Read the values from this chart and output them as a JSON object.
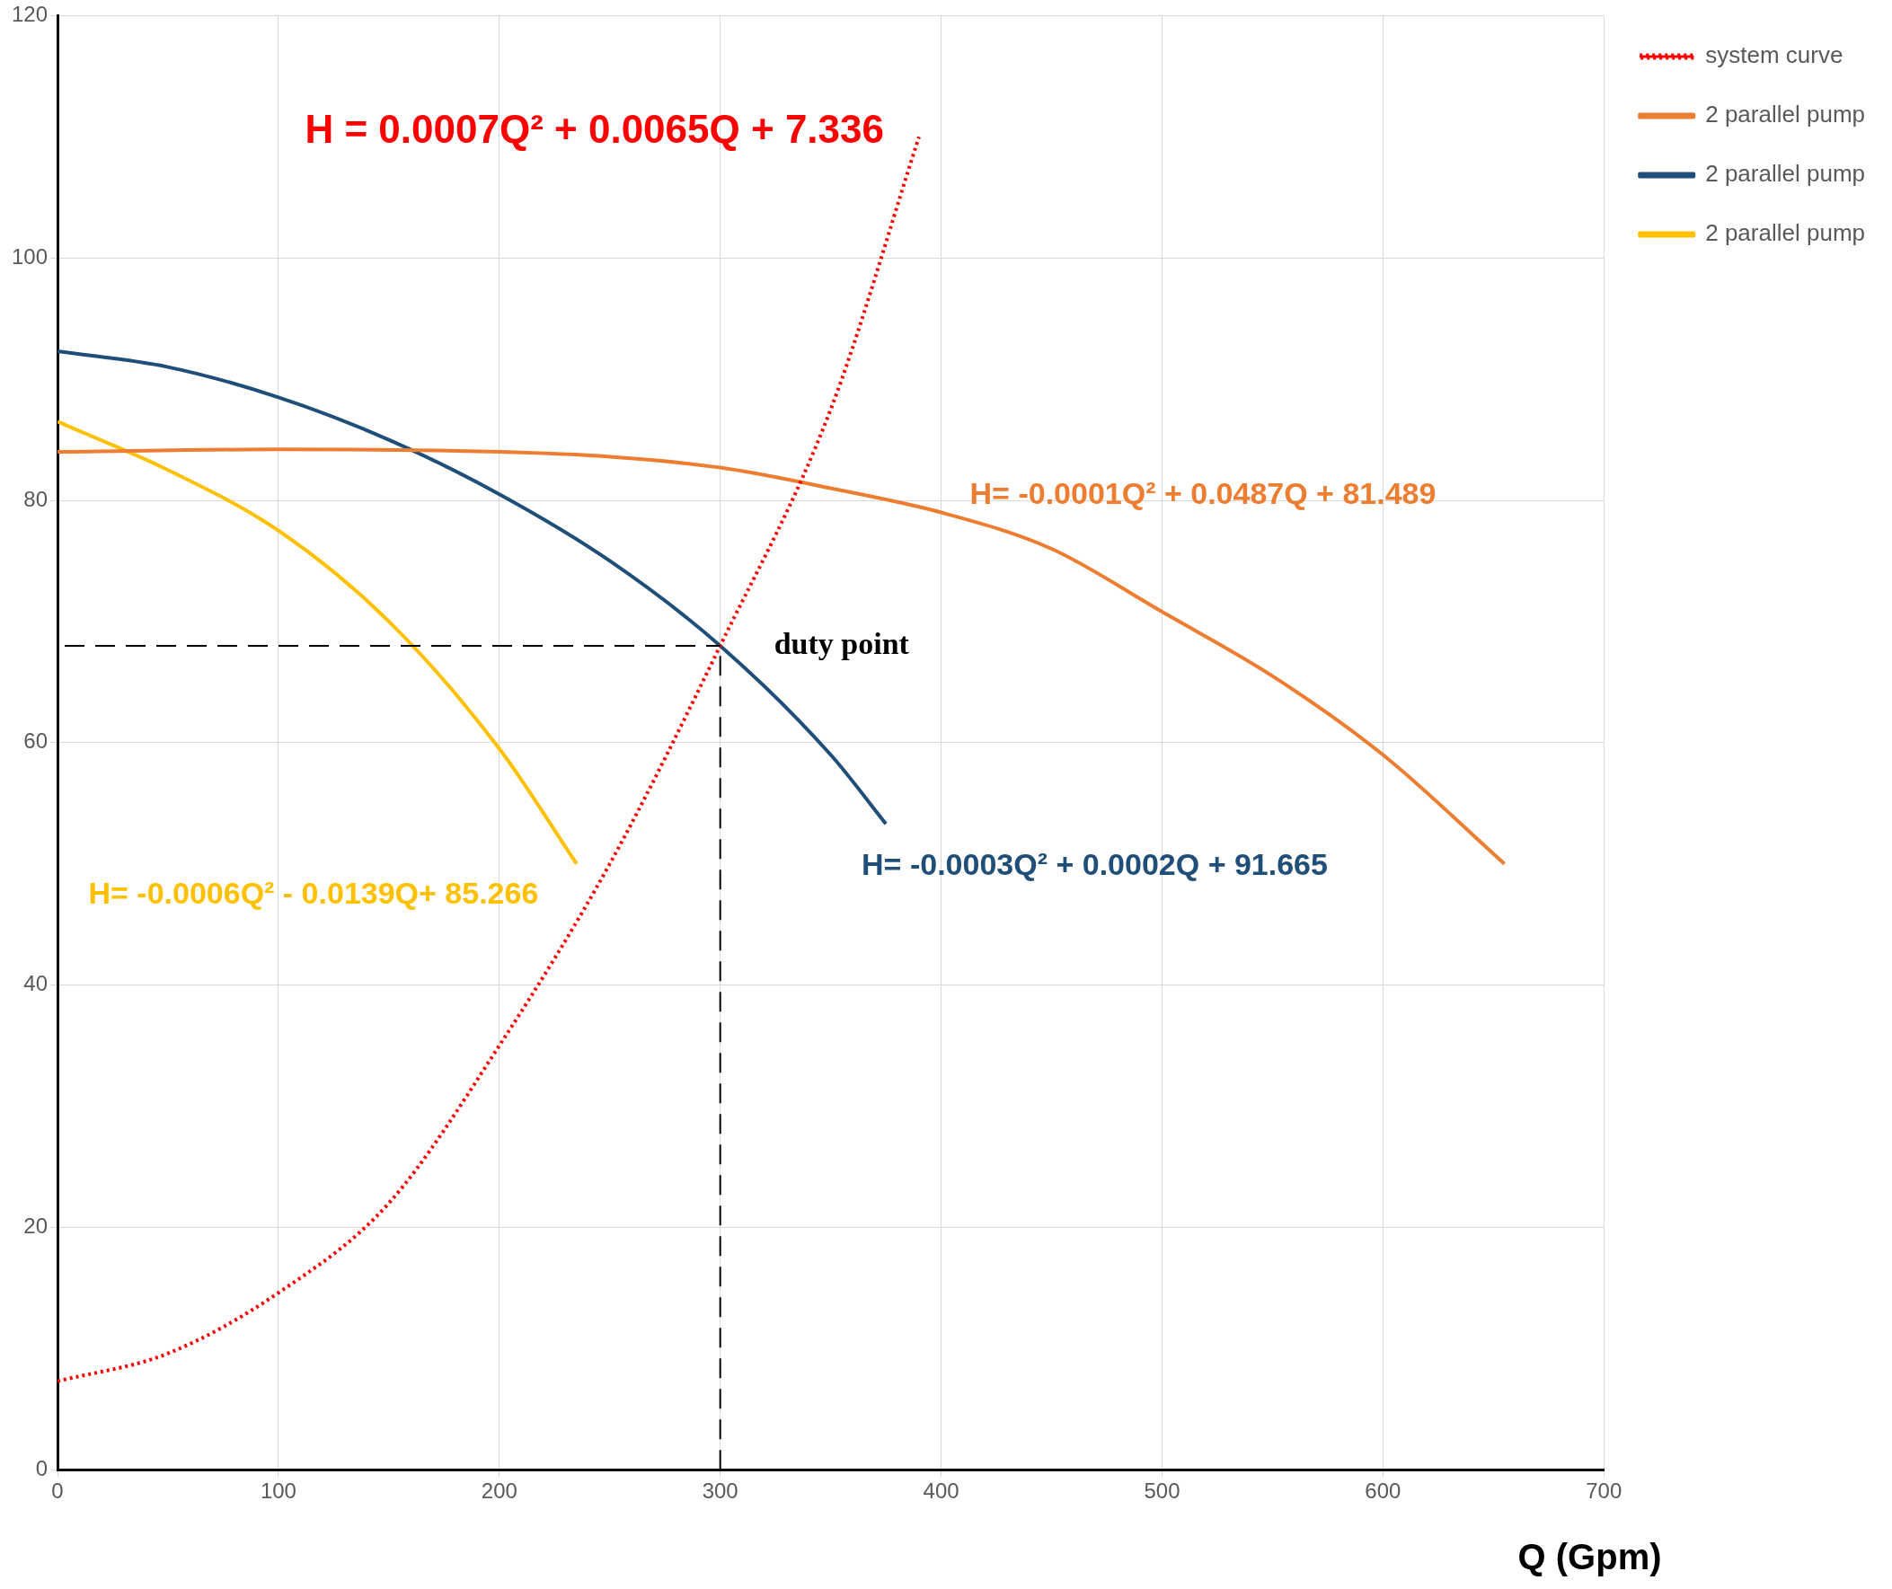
{
  "chart_data": {
    "type": "line",
    "xlabel": "Q (Gpm)",
    "xlim": [
      0,
      700
    ],
    "xticks": [
      0,
      100,
      200,
      300,
      400,
      500,
      600,
      700
    ],
    "ylim": [
      0,
      120
    ],
    "yticks": [
      0,
      20,
      40,
      60,
      80,
      100,
      120
    ],
    "grid": true,
    "legend": "top right",
    "marker": "none",
    "series": [
      {
        "name": "system curve",
        "color": "#ff0000",
        "line_style": "dotted",
        "x": [
          0,
          50,
          100,
          150,
          200,
          250,
          300,
          350,
          390
        ],
        "values": [
          7.3,
          9.6,
          14.6,
          22,
          35,
          50,
          68,
          87.5,
          110
        ]
      },
      {
        "name": "2 parallel pump",
        "color": "#ed7d31",
        "line_style": "solid",
        "x": [
          0,
          100,
          200,
          250,
          300,
          350,
          400,
          450,
          500,
          550,
          600,
          655
        ],
        "values": [
          84,
          84.2,
          84,
          83.6,
          82.7,
          81,
          79,
          76,
          70.8,
          65.5,
          59,
          50
        ]
      },
      {
        "name": "2 parallel pump",
        "color": "#1f4e79",
        "line_style": "solid",
        "x": [
          0,
          50,
          100,
          150,
          200,
          250,
          300,
          350,
          375
        ],
        "values": [
          92.3,
          91,
          88.5,
          85,
          80.5,
          75,
          68,
          59,
          53.3
        ]
      },
      {
        "name": "2 parallel pump",
        "color": "#ffc000",
        "line_style": "solid",
        "x": [
          0,
          50,
          100,
          150,
          200,
          235
        ],
        "values": [
          86.5,
          82.5,
          77.5,
          70,
          59.5,
          50
        ]
      }
    ],
    "ref_lines": [
      {
        "axis": "y",
        "value": 68,
        "color": "#000000",
        "line_style": "dashed"
      },
      {
        "axis": "x",
        "value": 300,
        "color": "#000000",
        "line_style": "dashed"
      }
    ],
    "annotations": [
      "H = 0.0007Q² + 0.0065Q + 7.336",
      "H= -0.0001Q² + 0.0487Q + 81.489",
      "H= -0.0003Q² + 0.0002Q + 91.665",
      "H= -0.0006Q² - 0.0139Q+ 85.266",
      {
        "text": "duty point",
        "x": 300,
        "y": 68
      }
    ]
  }
}
